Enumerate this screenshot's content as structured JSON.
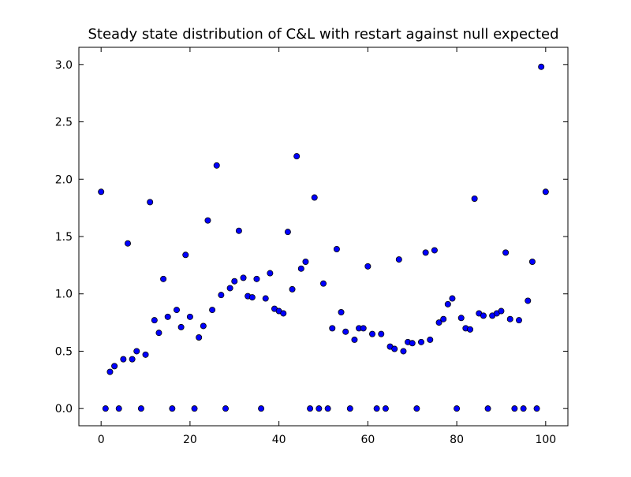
{
  "chart_data": {
    "type": "scatter",
    "title": "Steady state distribution of C&L with restart against null expected",
    "xlabel": "",
    "ylabel": "",
    "xlim": [
      -5,
      105
    ],
    "ylim": [
      -0.15,
      3.15
    ],
    "xticks": [
      0,
      20,
      40,
      60,
      80,
      100
    ],
    "yticks": [
      0.0,
      0.5,
      1.0,
      1.5,
      2.0,
      2.5,
      3.0
    ],
    "xtick_labels": [
      "0",
      "20",
      "40",
      "60",
      "80",
      "100"
    ],
    "ytick_labels": [
      "0.0",
      "0.5",
      "1.0",
      "1.5",
      "2.0",
      "2.5",
      "3.0"
    ],
    "grid": false,
    "marker_color": "#0000ff",
    "marker_edge": "#000000",
    "series": [
      {
        "x": [
          0,
          1,
          2,
          3,
          4,
          5,
          6,
          7,
          8,
          9,
          10,
          11,
          12,
          13,
          14,
          15,
          16,
          17,
          18,
          19,
          20,
          21,
          22,
          23,
          24,
          25,
          26,
          27,
          28,
          29,
          30,
          31,
          32,
          33,
          34,
          35,
          36,
          37,
          38,
          39,
          40,
          41,
          42,
          43,
          44,
          45,
          46,
          47,
          48,
          49,
          50,
          51,
          52,
          53,
          54,
          55,
          56,
          57,
          58,
          59,
          60,
          61,
          62,
          63,
          64,
          65,
          66,
          67,
          68,
          69,
          70,
          71,
          72,
          73,
          74,
          75,
          76,
          77,
          78,
          79,
          80,
          81,
          82,
          83,
          84,
          85,
          86,
          87,
          88,
          89,
          90,
          91,
          92,
          93,
          94,
          95,
          96,
          97,
          98,
          99,
          100
        ],
        "y": [
          1.89,
          0.0,
          0.32,
          0.37,
          0.0,
          0.43,
          1.44,
          0.43,
          0.5,
          0.0,
          0.47,
          1.8,
          0.77,
          0.66,
          1.13,
          0.8,
          0.0,
          0.86,
          0.71,
          1.34,
          0.8,
          0.0,
          0.62,
          0.72,
          1.64,
          0.86,
          2.12,
          0.99,
          0.0,
          1.05,
          1.11,
          1.55,
          1.14,
          0.98,
          0.97,
          1.13,
          0.0,
          0.96,
          1.18,
          0.87,
          0.85,
          0.83,
          1.54,
          1.04,
          2.2,
          1.22,
          1.28,
          0.0,
          1.84,
          0.0,
          1.09,
          0.0,
          0.7,
          1.39,
          0.84,
          0.67,
          0.0,
          0.6,
          0.7,
          0.7,
          1.24,
          0.65,
          0.0,
          0.65,
          0.0,
          0.54,
          0.52,
          1.3,
          0.5,
          0.58,
          0.57,
          0.0,
          0.58,
          1.36,
          0.6,
          1.38,
          0.75,
          0.78,
          0.91,
          0.96,
          0.0,
          0.79,
          0.7,
          0.69,
          1.83,
          0.83,
          0.81,
          0.0,
          0.81,
          0.83,
          0.85,
          1.36,
          0.78,
          0.0,
          0.77,
          0.0,
          0.94,
          1.28,
          0.0,
          2.98,
          1.89
        ]
      }
    ]
  }
}
